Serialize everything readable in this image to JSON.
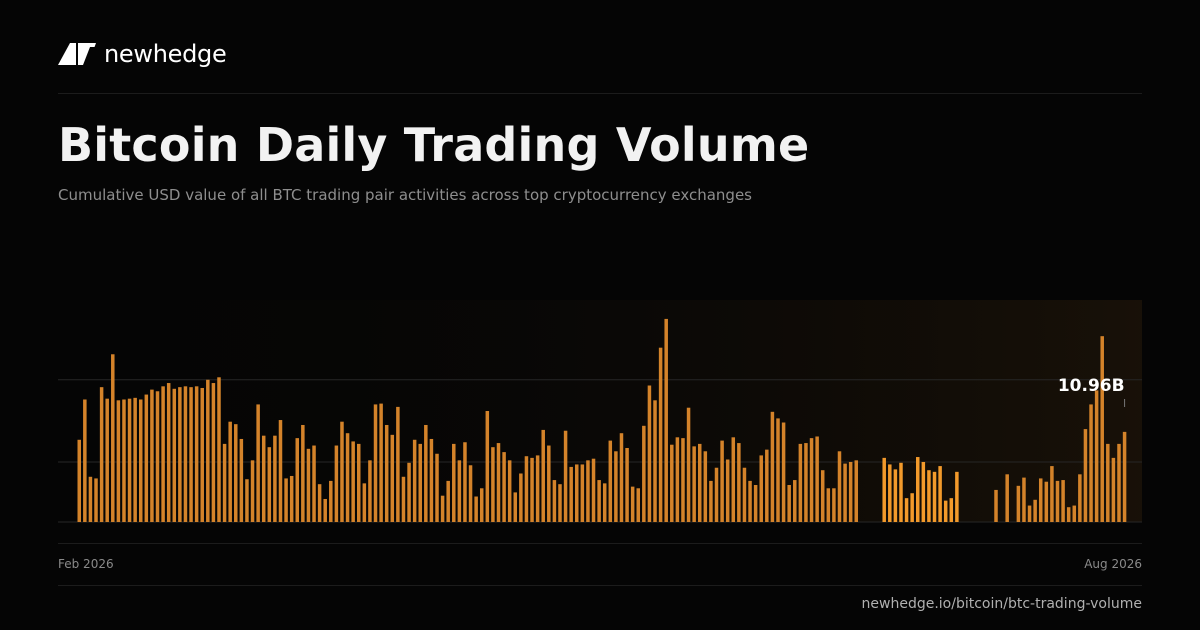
{
  "brand": {
    "name": "newhedge",
    "logo_icon": "newhedge-logo-icon"
  },
  "header": {
    "title": "Bitcoin Daily Trading Volume",
    "subtitle": "Cumulative USD value of all BTC trading pair activities across top cryptocurrency exchanges"
  },
  "footer": {
    "url": "newhedge.io/bitcoin/btc-trading-volume"
  },
  "colors": {
    "bar": "#d4832a",
    "bar_highlight": "#f39a2b",
    "gridline": "#262626",
    "background": "#050505"
  },
  "chart_data": {
    "type": "bar",
    "title": "",
    "xlabel": "",
    "ylabel": "",
    "x_start_label": "Feb 2026",
    "x_end_label": "Aug 2026",
    "ylim": [
      0,
      27
    ],
    "grid": true,
    "gridlines": [
      0,
      7.3,
      17.3
    ],
    "latest_value_label": "10.96B",
    "latest_value": 10.96,
    "unit": "B USD",
    "values": [
      10.0,
      14.9,
      5.5,
      5.3,
      16.4,
      15.0,
      20.4,
      14.8,
      14.9,
      15.0,
      15.1,
      14.9,
      15.5,
      16.1,
      15.9,
      16.5,
      16.9,
      16.2,
      16.4,
      16.5,
      16.4,
      16.5,
      16.3,
      17.3,
      16.9,
      17.6,
      9.5,
      12.2,
      11.9,
      10.1,
      5.2,
      7.5,
      14.3,
      10.5,
      9.1,
      10.5,
      12.4,
      5.3,
      5.6,
      10.2,
      11.8,
      8.9,
      9.3,
      4.6,
      2.8,
      5.0,
      9.3,
      12.2,
      10.8,
      9.8,
      9.5,
      4.7,
      7.5,
      14.3,
      14.4,
      11.8,
      10.6,
      14.0,
      5.5,
      7.2,
      10.0,
      9.5,
      11.8,
      10.1,
      8.3,
      3.2,
      5.0,
      9.5,
      7.5,
      9.7,
      6.9,
      3.1,
      4.1,
      13.5,
      9.1,
      9.6,
      8.5,
      7.5,
      3.6,
      5.9,
      8.0,
      7.8,
      8.1,
      11.2,
      9.3,
      5.1,
      4.6,
      11.1,
      6.7,
      7.0,
      7.0,
      7.5,
      7.7,
      5.1,
      4.7,
      9.9,
      8.6,
      10.8,
      9.0,
      4.3,
      4.1,
      11.7,
      16.6,
      14.8,
      21.2,
      24.7,
      9.4,
      10.3,
      10.2,
      13.9,
      9.2,
      9.5,
      8.6,
      5.0,
      6.6,
      9.9,
      7.6,
      10.3,
      9.6,
      6.6,
      5.0,
      4.5,
      8.1,
      8.8,
      13.4,
      12.6,
      12.1,
      4.5,
      5.1,
      9.5,
      9.6,
      10.2,
      10.4,
      6.3,
      4.1,
      4.1,
      8.6,
      7.1,
      7.3,
      7.5,
      null,
      null,
      null,
      null,
      7.8,
      7.0,
      6.4,
      7.2,
      2.9,
      3.5,
      7.9,
      7.3,
      6.3,
      6.1,
      6.8,
      2.6,
      2.9,
      6.1,
      null,
      null,
      null,
      null,
      null,
      null,
      3.9,
      null,
      5.8,
      null,
      4.4,
      5.4,
      2.0,
      2.7,
      5.3,
      4.9,
      6.8,
      5.0,
      5.1,
      1.8,
      2.0,
      5.8,
      11.3,
      14.3,
      16.0,
      22.6,
      9.5,
      7.8,
      9.5,
      10.96
    ],
    "highlight_segment": [
      144,
      163
    ]
  }
}
